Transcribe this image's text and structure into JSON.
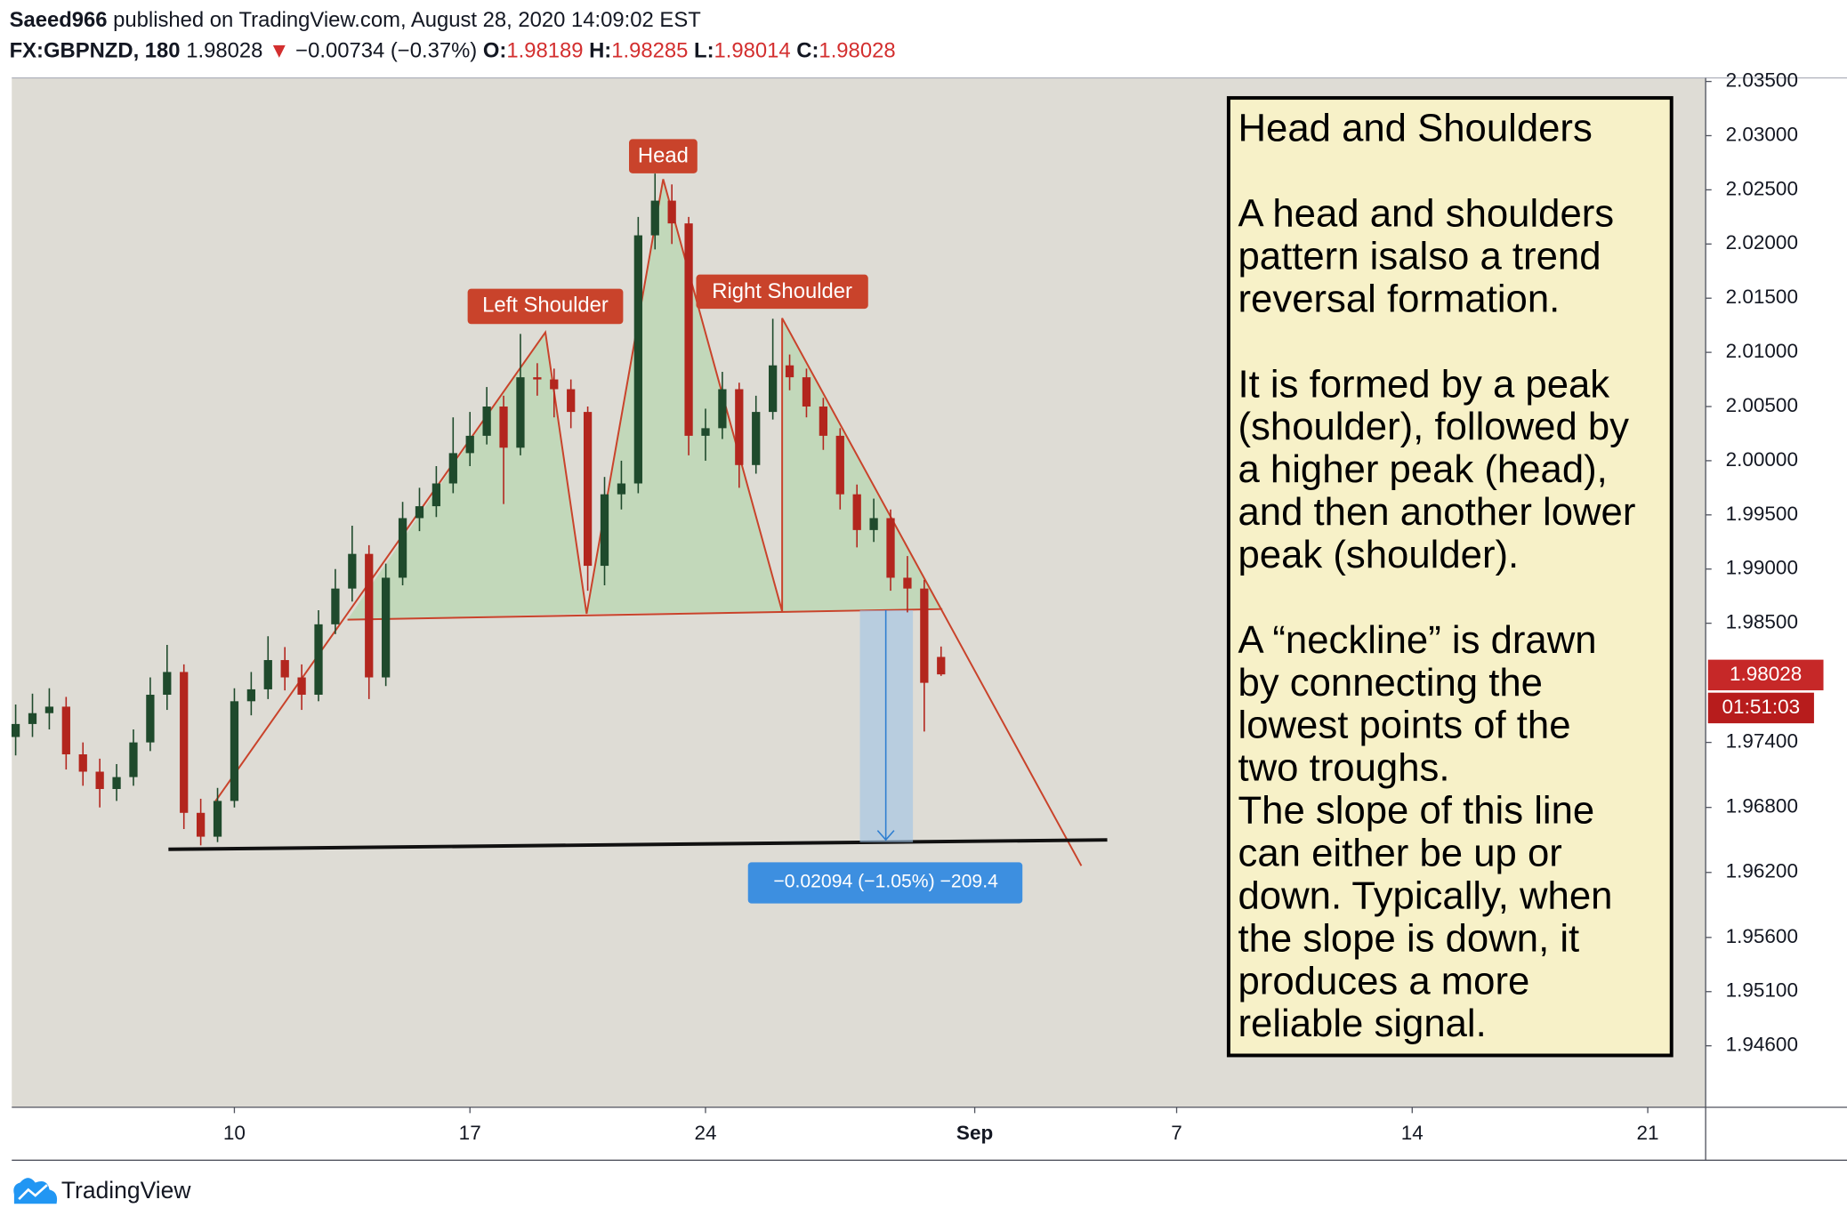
{
  "header": {
    "author": "Saeed966",
    "published": "published on TradingView.com, August 28, 2020 14:09:02 EST",
    "symbol": "FX:GBPNZD, 180",
    "price": "1.98028",
    "arrow": "▼",
    "change": "−0.00734 (−0.37%)",
    "ohlc": [
      {
        "key": "O:",
        "value": "1.98189"
      },
      {
        "key": "H:",
        "value": "1.98285"
      },
      {
        "key": "L:",
        "value": "1.98014"
      },
      {
        "key": "C:",
        "value": "1.98028"
      }
    ]
  },
  "chart_data": {
    "type": "candlestick",
    "up_color": "#1f4a2c",
    "down_color": "#b3261e",
    "x": [
      3.5,
      4.0,
      4.5,
      5.0,
      5.5,
      6.0,
      6.5,
      7.0,
      7.5,
      8.0,
      8.5,
      9.0,
      9.5,
      10.0,
      10.5,
      11.0,
      11.5,
      12.0,
      12.5,
      13.0,
      13.5,
      14.0,
      14.5,
      15.0,
      15.5,
      16.0,
      16.5,
      17.0,
      17.5,
      18.0,
      18.5,
      19.0,
      19.5,
      20.0,
      20.5,
      21.0,
      21.5,
      22.0,
      22.5,
      23.0,
      23.5,
      24.0,
      24.5,
      25.0,
      25.5,
      26.0,
      26.5,
      27.0,
      27.5,
      28.0,
      28.5,
      29.0,
      29.5,
      30.0,
      30.5,
      31.0
    ],
    "open": [
      1.9745,
      1.9757,
      1.9767,
      1.9773,
      1.9729,
      1.9713,
      1.9697,
      1.9708,
      1.974,
      1.9784,
      1.9805,
      1.9675,
      1.9653,
      1.9686,
      1.9778,
      1.9789,
      1.9816,
      1.98,
      1.9784,
      1.9849,
      1.9882,
      1.9914,
      1.98,
      1.9892,
      1.9947,
      1.9958,
      1.9979,
      2.0007,
      2.0023,
      2.005,
      2.0012,
      2.0077,
      2.0075,
      2.0066,
      2.0045,
      1.9903,
      1.9969,
      1.9979,
      2.0208,
      2.024,
      2.0219,
      2.0023,
      2.003,
      2.0066,
      1.9996,
      2.0045,
      2.0088,
      2.0077,
      2.005,
      2.0023,
      1.9969,
      1.9936,
      1.9947,
      1.9892,
      1.9882,
      1.98189
    ],
    "high": [
      1.9775,
      1.9785,
      1.979,
      1.9782,
      1.974,
      1.9725,
      1.972,
      1.9752,
      1.98,
      1.983,
      1.9812,
      1.9688,
      1.9698,
      1.979,
      1.9805,
      1.9838,
      1.9828,
      1.9812,
      1.9862,
      1.99,
      1.994,
      1.9922,
      1.9905,
      1.9962,
      1.9975,
      1.9995,
      2.004,
      2.0045,
      2.0068,
      2.006,
      2.0117,
      2.009,
      2.0085,
      2.0075,
      2.005,
      1.9985,
      2.0,
      2.0225,
      2.0265,
      2.0255,
      2.0225,
      2.0048,
      2.0082,
      2.0072,
      2.006,
      2.0131,
      2.0098,
      2.0085,
      2.0058,
      2.003,
      1.9978,
      1.9965,
      1.9955,
      1.9912,
      1.989,
      1.98285
    ],
    "low": [
      1.9728,
      1.9745,
      1.9752,
      1.9715,
      1.97,
      1.968,
      1.9686,
      1.97,
      1.9732,
      1.977,
      1.966,
      1.9645,
      1.9648,
      1.968,
      1.9765,
      1.978,
      1.9788,
      1.977,
      1.9778,
      1.984,
      1.987,
      1.978,
      1.9792,
      1.9885,
      1.9935,
      1.9948,
      1.997,
      1.9995,
      2.0015,
      1.996,
      2.0005,
      2.006,
      2.004,
      2.003,
      1.988,
      1.9885,
      1.9955,
      1.997,
      2.0195,
      2.02,
      2.0005,
      2.0,
      2.002,
      1.9975,
      1.9988,
      2.0038,
      2.0065,
      2.004,
      2.001,
      1.9955,
      1.992,
      1.9925,
      1.988,
      1.986,
      1.975,
      1.98014
    ],
    "close": [
      1.9757,
      1.9767,
      1.9773,
      1.9729,
      1.9713,
      1.9697,
      1.9708,
      1.974,
      1.9784,
      1.9805,
      1.9675,
      1.9653,
      1.9686,
      1.9778,
      1.9789,
      1.9816,
      1.98,
      1.9784,
      1.9849,
      1.9882,
      1.9914,
      1.98,
      1.9892,
      1.9947,
      1.9958,
      1.9979,
      2.0007,
      2.0023,
      2.005,
      2.0012,
      2.0077,
      2.0075,
      2.0066,
      2.0045,
      1.9903,
      1.9969,
      1.9979,
      2.0208,
      2.024,
      2.0219,
      2.0023,
      2.003,
      2.0066,
      1.9996,
      2.0045,
      2.0088,
      2.0077,
      2.005,
      2.0023,
      1.9969,
      1.9936,
      1.9947,
      1.9892,
      1.9882,
      1.9795,
      1.98028
    ],
    "xlim": [
      3.385,
      53.72
    ],
    "xticks": [
      10,
      17,
      24,
      {
        "value": 32,
        "label": "Sep"
      },
      {
        "value": 38,
        "label": "7"
      },
      {
        "value": 45,
        "label": "14"
      },
      {
        "value": 52,
        "label": "21"
      }
    ],
    "ylim": [
      1.94033,
      2.03533
    ],
    "yticks": [
      {
        "value": 2.035,
        "label": "2.03500"
      },
      {
        "value": 2.03,
        "label": "2.03000"
      },
      {
        "value": 2.025,
        "label": "2.02500"
      },
      {
        "value": 2.02,
        "label": "2.02000"
      },
      {
        "value": 2.015,
        "label": "2.01500"
      },
      {
        "value": 2.01,
        "label": "2.01000"
      },
      {
        "value": 2.005,
        "label": "2.00500"
      },
      {
        "value": 2.0,
        "label": "2.00000"
      },
      {
        "value": 1.995,
        "label": "1.99500"
      },
      {
        "value": 1.99,
        "label": "1.99000"
      },
      {
        "value": 1.985,
        "label": "1.98500"
      },
      {
        "value": 1.974,
        "label": "1.97400"
      },
      {
        "value": 1.968,
        "label": "1.96800"
      },
      {
        "value": 1.962,
        "label": "1.96200"
      },
      {
        "value": 1.956,
        "label": "1.95600"
      },
      {
        "value": 1.951,
        "label": "1.95100"
      },
      {
        "value": 1.946,
        "label": "1.94600"
      }
    ],
    "grid": false,
    "last_price_label": "1.98028",
    "countdown": "01:51:03",
    "annotations": [
      "Head",
      "Left Shoulder",
      "Right Shoulder",
      "−0.02094 (−1.05%) −209.4"
    ]
  },
  "text_box": {
    "title": "Head and Shoulders",
    "paragraphs": [
      [
        "A head and shoulders",
        "pattern isalso a trend",
        "reversal formation."
      ],
      [
        "It is formed by a peak",
        "(shoulder), followed by",
        "a higher peak (head),",
        "and then another lower",
        "peak (shoulder)."
      ],
      [
        "A “neckline” is drawn",
        "by connecting the",
        "lowest points of the",
        "two troughs.",
        "The slope of this line",
        "can either be up or",
        "down. Typically, when",
        "the slope is down, it",
        "produces a more",
        "reliable signal."
      ]
    ]
  },
  "footer": {
    "brand": "TradingView"
  }
}
